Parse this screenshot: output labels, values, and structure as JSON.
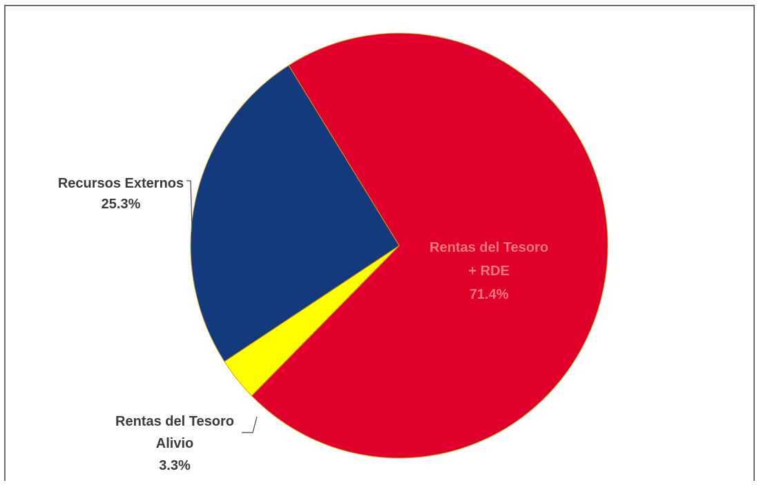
{
  "chart_data": {
    "type": "pie",
    "slices": [
      {
        "name": "Rentas del Tesoro + RDE",
        "label_lines": [
          "Rentas del Tesoro",
          "+ RDE",
          "71.4%"
        ],
        "value": 71.4,
        "color": "#e0002b",
        "label_color": "#ff7a7a",
        "label_position": "inside"
      },
      {
        "name": "Rentas del Tesoro Alivio",
        "label_lines": [
          "Rentas del Tesoro",
          "Alivio",
          "3.3%"
        ],
        "value": 3.3,
        "color": "#ffff00",
        "label_color": "#3a3a3a",
        "label_position": "outside-bottom-left"
      },
      {
        "name": "Recursos Externos",
        "label_lines": [
          "Recursos Externos",
          "25.3%"
        ],
        "value": 25.3,
        "color": "#123a7c",
        "label_color": "#3a3a3a",
        "label_position": "outside-left"
      }
    ],
    "legend": "none",
    "slice_border_color": "#d4a017"
  }
}
